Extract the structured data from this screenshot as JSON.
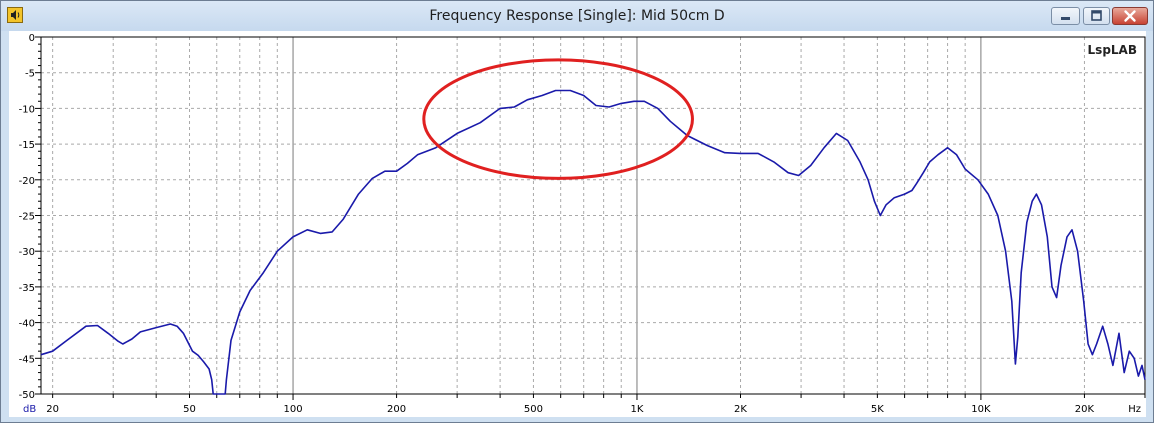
{
  "window": {
    "title": "Frequency Response [Single]: Mid 50cm D",
    "icon": "speaker-icon",
    "buttons": [
      "minimize-icon",
      "maximize-icon",
      "close-icon"
    ]
  },
  "chart_data": {
    "type": "line",
    "watermark": "LspLAB",
    "xunit": "Hz",
    "yunit": "dB",
    "xscale": "log",
    "xlim": [
      18.5,
      30000
    ],
    "ylim": [
      -50,
      0
    ],
    "grid": true,
    "x_tick_labels": [
      {
        "v": 20,
        "label": "20"
      },
      {
        "v": 50,
        "label": "50"
      },
      {
        "v": 100,
        "label": "100"
      },
      {
        "v": 200,
        "label": "200"
      },
      {
        "v": 500,
        "label": "500"
      },
      {
        "v": 1000,
        "label": "1K"
      },
      {
        "v": 2000,
        "label": "2K"
      },
      {
        "v": 5000,
        "label": "5K"
      },
      {
        "v": 10000,
        "label": "10K"
      },
      {
        "v": 20000,
        "label": "20K"
      }
    ],
    "y_tick_labels": [
      "0",
      "-5",
      "-10",
      "-15",
      "-20",
      "-25",
      "-30",
      "-35",
      "-40",
      "-45",
      "-50"
    ],
    "series": [
      {
        "color": "#1a1aaa",
        "points": [
          [
            18.5,
            -44.5
          ],
          [
            20,
            -44.0
          ],
          [
            22,
            -42.5
          ],
          [
            25,
            -40.5
          ],
          [
            27,
            -40.4
          ],
          [
            29,
            -41.5
          ],
          [
            31,
            -42.6
          ],
          [
            32,
            -43.0
          ],
          [
            34,
            -42.3
          ],
          [
            36,
            -41.3
          ],
          [
            40,
            -40.7
          ],
          [
            44,
            -40.2
          ],
          [
            46,
            -40.5
          ],
          [
            48,
            -41.5
          ],
          [
            51,
            -44.0
          ],
          [
            53,
            -44.6
          ],
          [
            55,
            -45.5
          ],
          [
            57,
            -46.5
          ],
          [
            58,
            -48.0
          ],
          [
            58.6,
            -50.0
          ],
          [
            63.5,
            -50.0
          ],
          [
            64,
            -48.0
          ],
          [
            66,
            -42.5
          ],
          [
            70,
            -38.5
          ],
          [
            75,
            -35.5
          ],
          [
            82,
            -33.0
          ],
          [
            90,
            -30.0
          ],
          [
            100,
            -28.0
          ],
          [
            110,
            -27.0
          ],
          [
            120,
            -27.5
          ],
          [
            130,
            -27.3
          ],
          [
            140,
            -25.5
          ],
          [
            155,
            -22.0
          ],
          [
            170,
            -19.8
          ],
          [
            185,
            -18.8
          ],
          [
            200,
            -18.8
          ],
          [
            215,
            -17.7
          ],
          [
            230,
            -16.5
          ],
          [
            260,
            -15.5
          ],
          [
            300,
            -13.5
          ],
          [
            350,
            -12.0
          ],
          [
            400,
            -10.0
          ],
          [
            440,
            -9.8
          ],
          [
            480,
            -8.8
          ],
          [
            530,
            -8.2
          ],
          [
            580,
            -7.5
          ],
          [
            640,
            -7.5
          ],
          [
            700,
            -8.2
          ],
          [
            760,
            -9.6
          ],
          [
            830,
            -9.8
          ],
          [
            900,
            -9.3
          ],
          [
            980,
            -9.0
          ],
          [
            1050,
            -9.0
          ],
          [
            1150,
            -10.0
          ],
          [
            1250,
            -11.8
          ],
          [
            1400,
            -13.8
          ],
          [
            1600,
            -15.2
          ],
          [
            1800,
            -16.2
          ],
          [
            2000,
            -16.3
          ],
          [
            2250,
            -16.3
          ],
          [
            2500,
            -17.5
          ],
          [
            2750,
            -19.0
          ],
          [
            2950,
            -19.4
          ],
          [
            3200,
            -18.0
          ],
          [
            3500,
            -15.5
          ],
          [
            3800,
            -13.5
          ],
          [
            4100,
            -14.5
          ],
          [
            4450,
            -17.5
          ],
          [
            4700,
            -20.0
          ],
          [
            4900,
            -23.0
          ],
          [
            5100,
            -25.0
          ],
          [
            5300,
            -23.5
          ],
          [
            5600,
            -22.5
          ],
          [
            6000,
            -22.0
          ],
          [
            6300,
            -21.5
          ],
          [
            6500,
            -20.5
          ],
          [
            6800,
            -19.0
          ],
          [
            7100,
            -17.5
          ],
          [
            7500,
            -16.5
          ],
          [
            8000,
            -15.5
          ],
          [
            8500,
            -16.5
          ],
          [
            9000,
            -18.5
          ],
          [
            9800,
            -20.0
          ],
          [
            10500,
            -22.0
          ],
          [
            11200,
            -25.0
          ],
          [
            11800,
            -30.0
          ],
          [
            12300,
            -37.0
          ],
          [
            12600,
            -45.8
          ],
          [
            12800,
            -42.0
          ],
          [
            13100,
            -33.0
          ],
          [
            13600,
            -26.0
          ],
          [
            14100,
            -23.0
          ],
          [
            14500,
            -22.0
          ],
          [
            15000,
            -23.5
          ],
          [
            15600,
            -28.0
          ],
          [
            16100,
            -35.0
          ],
          [
            16600,
            -36.5
          ],
          [
            17100,
            -32.0
          ],
          [
            17800,
            -28.0
          ],
          [
            18400,
            -27.0
          ],
          [
            19100,
            -30.0
          ],
          [
            19900,
            -37.0
          ],
          [
            20500,
            -43.0
          ],
          [
            21100,
            -44.5
          ],
          [
            21700,
            -43.0
          ],
          [
            22600,
            -40.5
          ],
          [
            23400,
            -43.0
          ],
          [
            24200,
            -46.0
          ],
          [
            25200,
            -41.5
          ],
          [
            26100,
            -47.0
          ],
          [
            27000,
            -44.0
          ],
          [
            27900,
            -45.0
          ],
          [
            28700,
            -47.5
          ],
          [
            29400,
            -46.0
          ],
          [
            30000,
            -48.0
          ]
        ]
      }
    ],
    "annotation": {
      "shape": "ellipse",
      "color": "#e02020",
      "center": [
        600,
        -11.5
      ],
      "x_extent": [
        240,
        1450
      ],
      "y_extent": [
        -3.2,
        -19.8
      ]
    }
  }
}
